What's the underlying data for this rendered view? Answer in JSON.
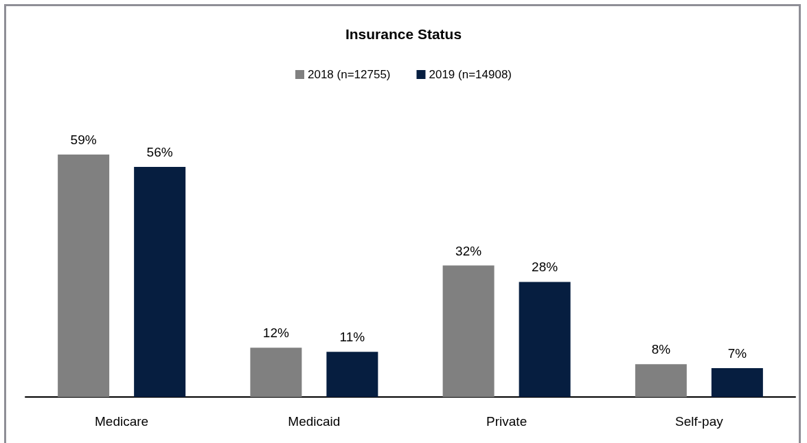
{
  "chart_data": {
    "type": "bar",
    "title": "Insurance Status",
    "categories": [
      "Medicare",
      "Medicaid",
      "Private",
      "Self-pay"
    ],
    "series": [
      {
        "name": "2018 (n=12755)",
        "color": "#808080",
        "values": [
          59,
          12,
          32,
          8
        ],
        "value_labels": [
          "59%",
          "12%",
          "32%",
          "8%"
        ]
      },
      {
        "name": "2019 (n=14908)",
        "color": "#061e40",
        "values": [
          56,
          11,
          28,
          7
        ],
        "value_labels": [
          "56%",
          "11%",
          "28%",
          "7%"
        ]
      }
    ],
    "legend": "top"
  }
}
